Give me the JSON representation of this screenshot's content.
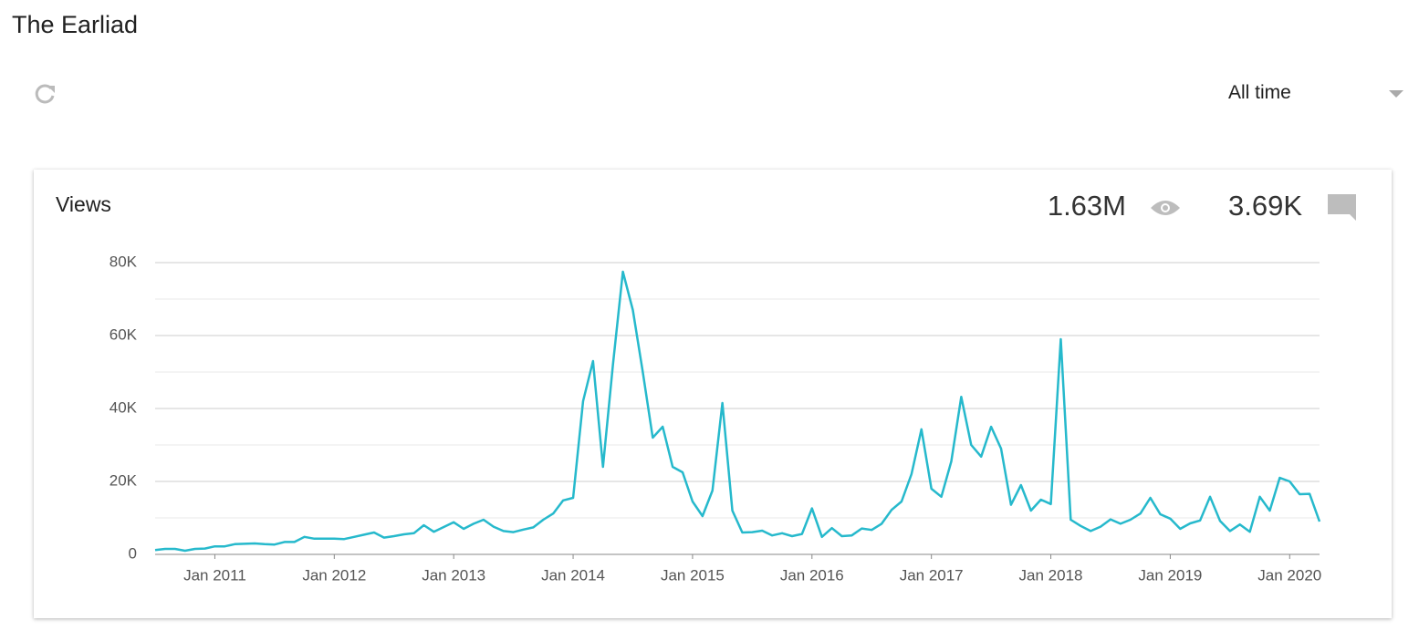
{
  "header": {
    "title": "The Earliad"
  },
  "controls": {
    "range": "All time"
  },
  "card": {
    "title": "Views",
    "views_total": "1.63M",
    "comments_total": "3.69K"
  },
  "chart_data": {
    "type": "line",
    "x": [
      "2010-07",
      "2010-08",
      "2010-09",
      "2010-10",
      "2010-11",
      "2010-12",
      "2011-01",
      "2011-02",
      "2011-03",
      "2011-04",
      "2011-05",
      "2011-06",
      "2011-07",
      "2011-08",
      "2011-09",
      "2011-10",
      "2011-11",
      "2011-12",
      "2012-01",
      "2012-02",
      "2012-03",
      "2012-04",
      "2012-05",
      "2012-06",
      "2012-07",
      "2012-08",
      "2012-09",
      "2012-10",
      "2012-11",
      "2012-12",
      "2013-01",
      "2013-02",
      "2013-03",
      "2013-04",
      "2013-05",
      "2013-06",
      "2013-07",
      "2013-08",
      "2013-09",
      "2013-10",
      "2013-11",
      "2013-12",
      "2014-01",
      "2014-02",
      "2014-03",
      "2014-04",
      "2014-05",
      "2014-06",
      "2014-07",
      "2014-08",
      "2014-09",
      "2014-10",
      "2014-11",
      "2014-12",
      "2015-01",
      "2015-02",
      "2015-03",
      "2015-04",
      "2015-05",
      "2015-06",
      "2015-07",
      "2015-08",
      "2015-09",
      "2015-10",
      "2015-11",
      "2015-12",
      "2016-01",
      "2016-02",
      "2016-03",
      "2016-04",
      "2016-05",
      "2016-06",
      "2016-07",
      "2016-08",
      "2016-09",
      "2016-10",
      "2016-11",
      "2016-12",
      "2017-01",
      "2017-02",
      "2017-03",
      "2017-04",
      "2017-05",
      "2017-06",
      "2017-07",
      "2017-08",
      "2017-09",
      "2017-10",
      "2017-11",
      "2017-12",
      "2018-01",
      "2018-02",
      "2018-03",
      "2018-04",
      "2018-05",
      "2018-06",
      "2018-07",
      "2018-08",
      "2018-09",
      "2018-10",
      "2018-11",
      "2018-12",
      "2019-01",
      "2019-02",
      "2019-03",
      "2019-04",
      "2019-05",
      "2019-06",
      "2019-07",
      "2019-08",
      "2019-09",
      "2019-10",
      "2019-11",
      "2019-12",
      "2020-01",
      "2020-02",
      "2020-03",
      "2020-04"
    ],
    "series": [
      {
        "name": "Views",
        "color": "#26b9cc",
        "values": [
          1200,
          1500,
          1500,
          1000,
          1500,
          1600,
          2200,
          2200,
          2800,
          2900,
          3000,
          2800,
          2700,
          3400,
          3400,
          4800,
          4300,
          4300,
          4300,
          4200,
          4800,
          5400,
          6000,
          4600,
          5000,
          5500,
          5800,
          8000,
          6200,
          7500,
          8800,
          7000,
          8400,
          9500,
          7600,
          6400,
          6100,
          6800,
          7400,
          9500,
          11200,
          14800,
          15500,
          42000,
          53000,
          24000,
          52000,
          77500,
          67000,
          50000,
          32000,
          35000,
          24000,
          22500,
          14500,
          10500,
          17500,
          41500,
          12000,
          6000,
          6100,
          6500,
          5200,
          5800,
          5000,
          5600,
          12600,
          4800,
          7200,
          5000,
          5200,
          7100,
          6700,
          8400,
          12200,
          14500,
          22000,
          34300,
          18000,
          15800,
          25500,
          43200,
          30000,
          26800,
          35000,
          29000,
          13600,
          19000,
          12000,
          15000,
          13800,
          59000,
          9500,
          7800,
          6400,
          7600,
          9600,
          8400,
          9500,
          11200,
          15500,
          11000,
          9800,
          7000,
          8500,
          9300,
          15800,
          9200,
          6400,
          8200,
          6200,
          15800,
          12000,
          21000,
          20000,
          16500,
          16600,
          9000
        ]
      }
    ],
    "xlim": [
      "2010-07",
      "2020-04"
    ],
    "xticks": [
      {
        "value": "2011-01",
        "label": "Jan 2011"
      },
      {
        "value": "2012-01",
        "label": "Jan 2012"
      },
      {
        "value": "2013-01",
        "label": "Jan 2013"
      },
      {
        "value": "2014-01",
        "label": "Jan 2014"
      },
      {
        "value": "2015-01",
        "label": "Jan 2015"
      },
      {
        "value": "2016-01",
        "label": "Jan 2016"
      },
      {
        "value": "2017-01",
        "label": "Jan 2017"
      },
      {
        "value": "2018-01",
        "label": "Jan 2018"
      },
      {
        "value": "2019-01",
        "label": "Jan 2019"
      },
      {
        "value": "2020-01",
        "label": "Jan 2020"
      }
    ],
    "ylim": [
      0,
      80000
    ],
    "yticks": [
      0,
      {
        "value": 20000,
        "label": "20K"
      },
      {
        "value": 40000,
        "label": "40K"
      },
      {
        "value": 60000,
        "label": "60K"
      },
      {
        "value": 80000,
        "label": "80K"
      }
    ],
    "minor_yticks": [
      10000,
      30000,
      50000,
      70000
    ],
    "grid": true
  }
}
